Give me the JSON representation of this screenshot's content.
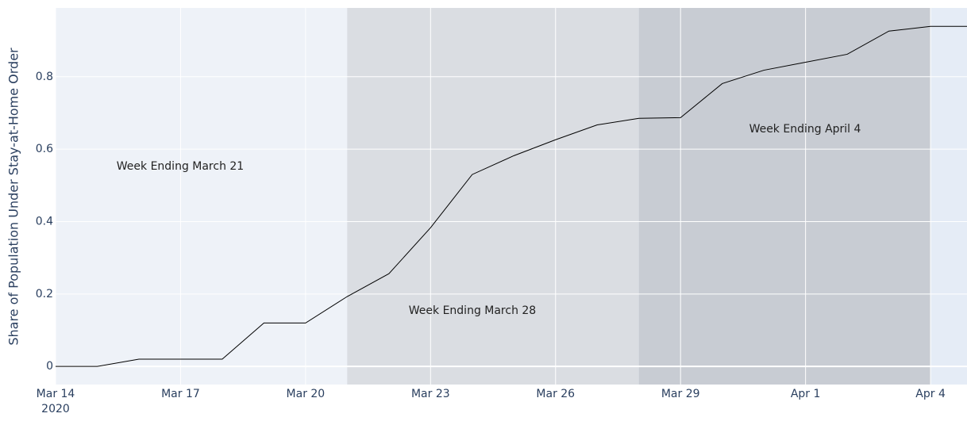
{
  "chart_data": {
    "type": "line",
    "y_axis_label": "Share of Population Under Stay-at-Home Order",
    "x": [
      "2020-03-14",
      "2020-03-15",
      "2020-03-16",
      "2020-03-17",
      "2020-03-18",
      "2020-03-19",
      "2020-03-20",
      "2020-03-21",
      "2020-03-22",
      "2020-03-23",
      "2020-03-24",
      "2020-03-25",
      "2020-03-26",
      "2020-03-27",
      "2020-03-28",
      "2020-03-29",
      "2020-03-30",
      "2020-03-31",
      "2020-04-01",
      "2020-04-02",
      "2020-04-03",
      "2020-04-04",
      "2020-04-05"
    ],
    "series": [
      {
        "color": "#000000",
        "values": [
          0,
          0,
          0.02,
          0.02,
          0.02,
          0.12,
          0.12,
          0.193,
          0.256,
          0.383,
          0.53,
          0.582,
          0.626,
          0.667,
          0.685,
          0.687,
          0.781,
          0.818,
          0.84,
          0.862,
          0.926,
          0.939,
          0.939
        ]
      }
    ],
    "regions": [
      {
        "label": "Week Ending March 21",
        "x0": "2020-03-14",
        "x1": "2020-03-21",
        "color": "#eef2f8"
      },
      {
        "label": "Week Ending March 28",
        "x0": "2020-03-21",
        "x1": "2020-03-28",
        "color": "#dadde2"
      },
      {
        "label": "Week Ending April 4",
        "x0": "2020-03-28",
        "x1": "2020-04-04",
        "color": "#c8ccd3"
      }
    ],
    "xlim": [
      "2020-03-14",
      "2020-04-04 21:00"
    ],
    "xticks": [
      {
        "value": "2020-03-14",
        "label": "Mar 14",
        "sublabel": "2020"
      },
      {
        "value": "2020-03-17",
        "label": "Mar 17"
      },
      {
        "value": "2020-03-20",
        "label": "Mar 20"
      },
      {
        "value": "2020-03-23",
        "label": "Mar 23"
      },
      {
        "value": "2020-03-26",
        "label": "Mar 26"
      },
      {
        "value": "2020-03-29",
        "label": "Mar 29"
      },
      {
        "value": "2020-04-01",
        "label": "Apr 1"
      },
      {
        "value": "2020-04-04",
        "label": "Apr 4"
      }
    ],
    "ylim": [
      -0.05,
      0.99
    ],
    "yticks": [
      0,
      0.2,
      0.4,
      0.6,
      0.8
    ],
    "grid": true,
    "background": "#e5ecf6"
  }
}
